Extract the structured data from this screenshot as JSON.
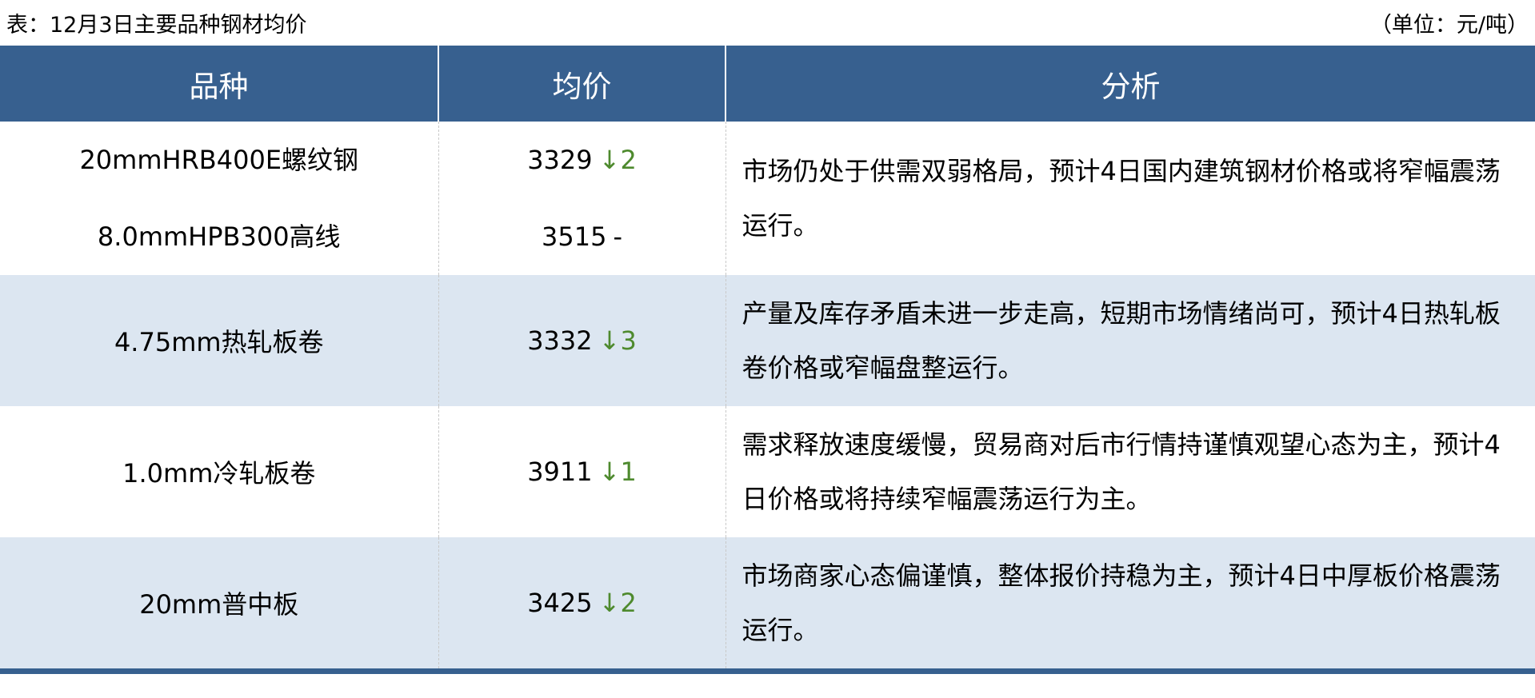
{
  "caption": {
    "title": "表：12月3日主要品种钢材均价",
    "unit": "（单位：元/吨）"
  },
  "headers": [
    "品种",
    "均价",
    "分析"
  ],
  "colors": {
    "header_bg": "#37608f",
    "alt_row_bg": "#dce6f1",
    "down_color": "#4e8a2e"
  },
  "rows": [
    {
      "items": [
        {
          "name": "20mmHRB400E螺纹钢",
          "price": "3329",
          "change": "↓2"
        },
        {
          "name": "8.0mmHPB300高线",
          "price": "3515",
          "change": "-"
        }
      ],
      "analysis": "市场仍处于供需双弱格局，预计4日国内建筑钢材价格或将窄幅震荡运行。"
    },
    {
      "items": [
        {
          "name": "4.75mm热轧板卷",
          "price": "3332",
          "change": "↓3"
        }
      ],
      "analysis": "产量及库存矛盾未进一步走高，短期市场情绪尚可，预计4日热轧板卷价格或窄幅盘整运行。"
    },
    {
      "items": [
        {
          "name": "1.0mm冷轧板卷",
          "price": "3911",
          "change": "↓1"
        }
      ],
      "analysis": "需求释放速度缓慢，贸易商对后市行情持谨慎观望心态为主，预计4日价格或将持续窄幅震荡运行为主。"
    },
    {
      "items": [
        {
          "name": "20mm普中板",
          "price": "3425",
          "change": "↓2"
        }
      ],
      "analysis": "市场商家心态偏谨慎，整体报价持稳为主，预计4日中厚板价格震荡运行。"
    }
  ]
}
